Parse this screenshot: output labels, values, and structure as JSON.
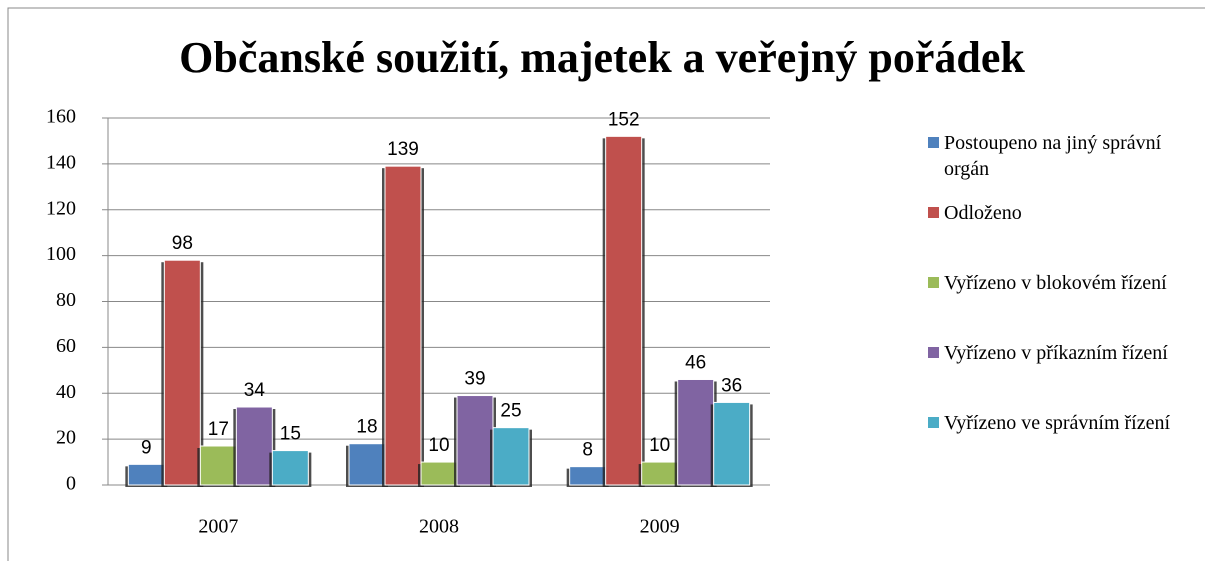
{
  "chart_data": {
    "type": "bar",
    "title": "Občanské soužití, majetek a veřejný pořádek",
    "categories": [
      "2007",
      "2008",
      "2009"
    ],
    "series": [
      {
        "name": "Postoupeno na jiný správní orgán",
        "color": "#4f81bd",
        "values": [
          9,
          18,
          8
        ]
      },
      {
        "name": "Odloženo",
        "color": "#c0504d",
        "values": [
          98,
          139,
          152
        ]
      },
      {
        "name": "Vyřízeno v blokovém řízení",
        "color": "#9bbb59",
        "values": [
          17,
          10,
          10
        ]
      },
      {
        "name": "Vyřízeno v příkazním řízení",
        "color": "#8064a2",
        "values": [
          34,
          39,
          46
        ]
      },
      {
        "name": "Vyřízeno ve správním řízení",
        "color": "#4bacc6",
        "values": [
          15,
          25,
          36
        ]
      }
    ],
    "ylim": [
      0,
      160
    ],
    "yticks": [
      0,
      20,
      40,
      60,
      80,
      100,
      120,
      140,
      160
    ],
    "grid": true,
    "legend": "right"
  }
}
